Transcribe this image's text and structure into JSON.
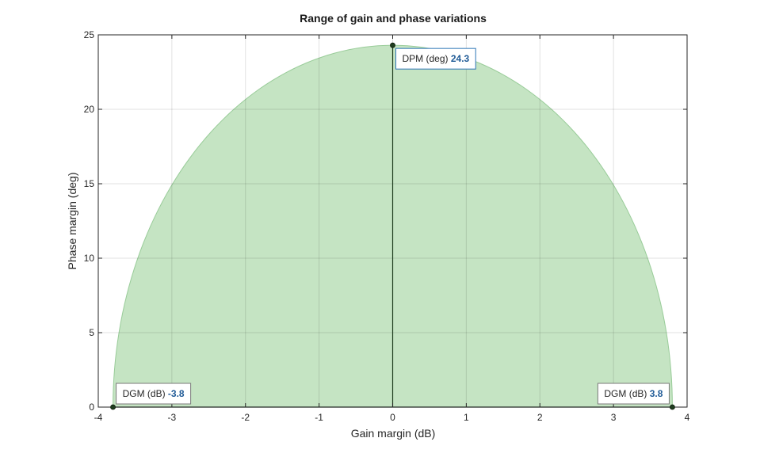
{
  "chart_data": {
    "type": "area",
    "title": "Range of gain and phase variations",
    "xlabel": "Gain margin (dB)",
    "ylabel": "Phase margin (deg)",
    "xlim": [
      -4,
      4
    ],
    "ylim": [
      0,
      25
    ],
    "xticks": [
      "-4",
      "-3",
      "-2",
      "-1",
      "0",
      "1",
      "2",
      "3",
      "4"
    ],
    "yticks": [
      "0",
      "5",
      "10",
      "15",
      "20",
      "25"
    ],
    "grid": true,
    "region": {
      "shape": "half-ellipse",
      "gain_margin_min": -3.8,
      "gain_margin_max": 3.8,
      "phase_margin_max": 24.3,
      "fill_color": "#c5e4c3",
      "edge_color": "#99cc99"
    },
    "vertical_line": {
      "x": 0,
      "y_max": 24.3,
      "color": "#1f3d1f"
    },
    "points": [
      {
        "x": -3.8,
        "y": 0
      },
      {
        "x": 0,
        "y": 24.3
      },
      {
        "x": 3.8,
        "y": 0
      }
    ],
    "datatips": [
      {
        "label": "DGM (dB)",
        "value": "-3.8",
        "border_color": "#7a7a7a"
      },
      {
        "label": "DPM (deg)",
        "value": "24.3",
        "border_color": "#2e75b6"
      },
      {
        "label": "DGM (dB)",
        "value": "3.8",
        "border_color": "#7a7a7a"
      }
    ]
  }
}
